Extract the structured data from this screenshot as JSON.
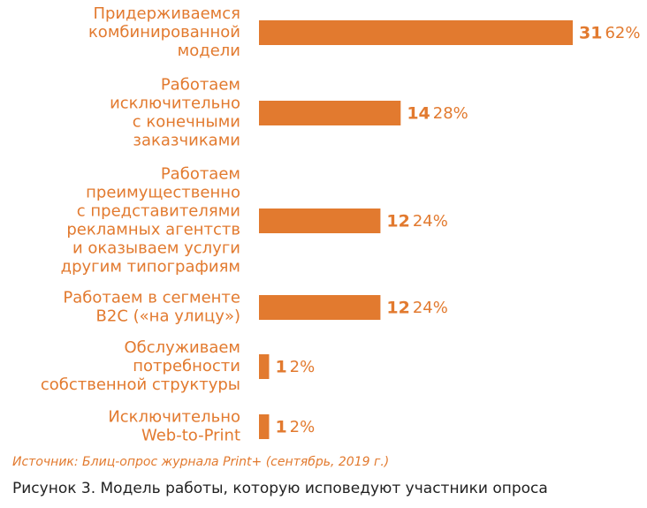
{
  "chart_data": {
    "type": "bar",
    "orientation": "horizontal",
    "categories": [
      [
        "Придерживаемся",
        "комбинированной",
        "модели"
      ],
      [
        "Работаем",
        "исключительно",
        "с конечными",
        "заказчиками"
      ],
      [
        "Работаем",
        "преимущественно",
        "с представителями",
        "рекламных агентств",
        "и оказываем услуги",
        "другим типографиям"
      ],
      [
        "Работаем в сегменте",
        "B2C («на улицу»)"
      ],
      [
        "Обслуживаем",
        "потребности",
        "собственной структуры"
      ],
      [
        "Исключительно",
        "Web-to-Print"
      ]
    ],
    "values": [
      31,
      14,
      12,
      12,
      1,
      1
    ],
    "percent_labels": [
      "62%",
      "28%",
      "24%",
      "24%",
      "2%",
      "2%"
    ],
    "color": "#e27a2f"
  },
  "source": "Источник: Блиц-опрос журнала Print+ (сентябрь, 2019 г.)",
  "caption": "Рисунок 3. Модель работы, которую исповедуют участники опроса"
}
